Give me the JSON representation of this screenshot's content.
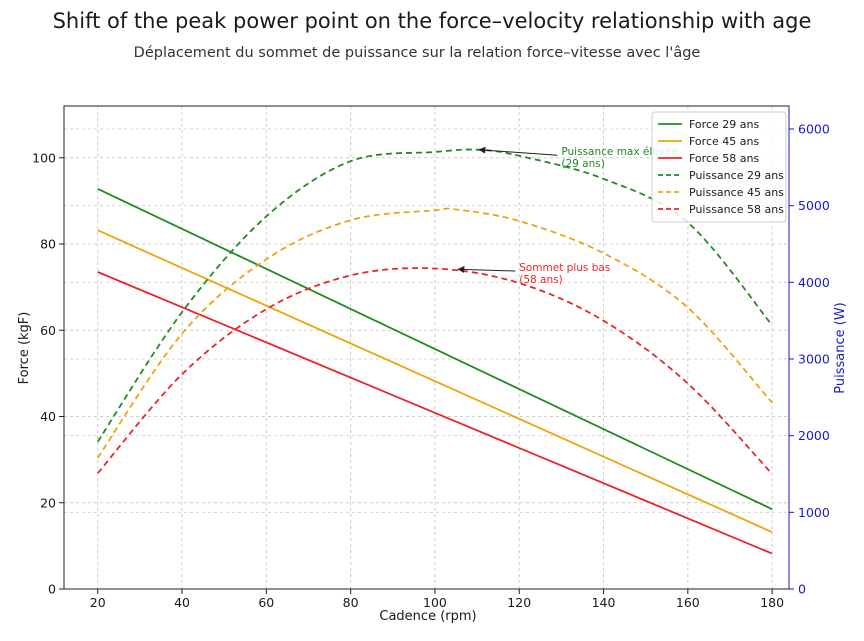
{
  "chart_data": {
    "type": "line",
    "title": "Shift of the peak power point on the force–velocity relationship with age",
    "subtitle": "Déplacement du sommet de puissance sur la relation force–vitesse avec l'âge",
    "xlabel": "Cadence (rpm)",
    "ylabel": "Force (kgF)",
    "y2label": "Puissance (W)",
    "xlim": [
      12,
      184
    ],
    "ylim": [
      0,
      112
    ],
    "y2lim": [
      0,
      6300
    ],
    "xticks": [
      20,
      40,
      60,
      80,
      100,
      120,
      140,
      160,
      180
    ],
    "yticks": [
      0,
      20,
      40,
      60,
      80,
      100
    ],
    "y2ticks": [
      0,
      1000,
      2000,
      3000,
      4000,
      5000,
      6000
    ],
    "grid": true,
    "legend_position": "top-right",
    "colors": {
      "age29": "#228b22",
      "age45": "#f0a30a",
      "age58": "#e8262a",
      "right_axis": "#1a1acd"
    },
    "series": [
      {
        "name": "Force 29 ans",
        "axis": "left",
        "style": "solid",
        "color": "#228b22",
        "x": [
          20,
          180
        ],
        "y": [
          92.8,
          18.5
        ]
      },
      {
        "name": "Force 45 ans",
        "axis": "left",
        "style": "solid",
        "color": "#f0a30a",
        "x": [
          20,
          180
        ],
        "y": [
          83.2,
          13.2
        ]
      },
      {
        "name": "Force 58 ans",
        "axis": "left",
        "style": "solid",
        "color": "#e8262a",
        "x": [
          20,
          180
        ],
        "y": [
          73.5,
          8.2
        ]
      },
      {
        "name": "Puissance 29 ans",
        "axis": "right",
        "style": "dashed",
        "color": "#228b22",
        "x": [
          20,
          40,
          60,
          80,
          100,
          110,
          120,
          140,
          160,
          180
        ],
        "y": [
          1920,
          3610,
          4860,
          5580,
          5700,
          5730,
          5650,
          5350,
          4780,
          3440
        ]
      },
      {
        "name": "Puissance 45 ans",
        "axis": "right",
        "style": "dashed",
        "color": "#f0a30a",
        "x": [
          20,
          40,
          60,
          80,
          100,
          105,
          120,
          140,
          160,
          180
        ],
        "y": [
          1710,
          3330,
          4300,
          4810,
          4940,
          4950,
          4800,
          4380,
          3670,
          2430
        ]
      },
      {
        "name": "Puissance 58 ans",
        "axis": "right",
        "style": "dashed",
        "color": "#e8262a",
        "x": [
          20,
          40,
          60,
          80,
          100,
          120,
          140,
          160,
          180
        ],
        "y": [
          1510,
          2800,
          3650,
          4090,
          4180,
          3990,
          3500,
          2680,
          1500
        ]
      }
    ],
    "annotations": [
      {
        "text_lines": [
          "Puissance max élevée",
          "(29 ans)"
        ],
        "color": "#228b22",
        "point": [
          110,
          5730
        ],
        "text_at": [
          130,
          5710
        ]
      },
      {
        "text_lines": [
          "Sommet plus bas",
          "(58 ans)"
        ],
        "color": "#e8262a",
        "point": [
          105,
          4170
        ],
        "text_at": [
          120,
          4200
        ]
      }
    ]
  }
}
